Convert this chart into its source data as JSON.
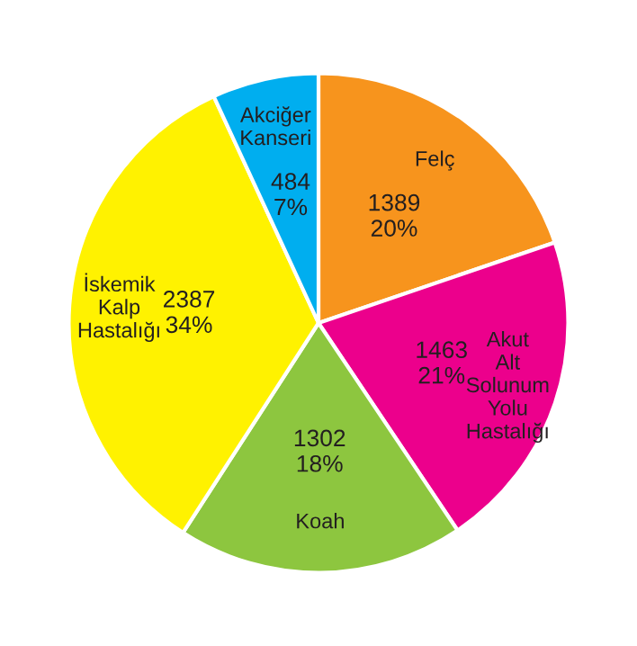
{
  "chart_data": {
    "type": "pie",
    "categories": [
      "Felç",
      "Akut Alt Solunum Yolu Hastalığı",
      "Koah",
      "İskemik Kalp Hastalığı",
      "Akciğer Kanseri"
    ],
    "values": [
      1389,
      1463,
      1302,
      2387,
      484
    ],
    "value_labels": [
      "1389\n20%",
      "1463\n21%",
      "1302\n18%",
      "2387\n34%",
      "484\n7%"
    ],
    "colors": [
      "#f7941d",
      "#ec008c",
      "#8dc63f",
      "#fff200",
      "#00aeef"
    ]
  }
}
